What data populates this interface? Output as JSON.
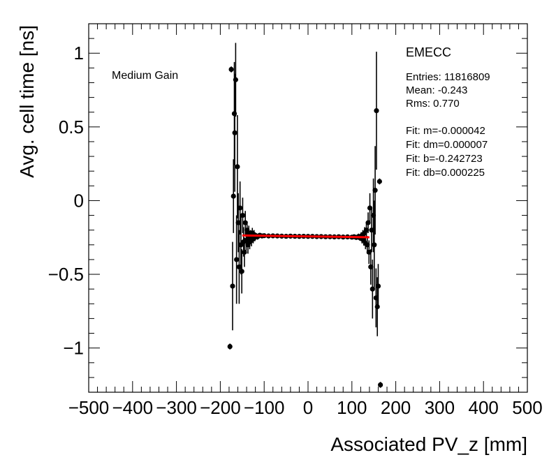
{
  "chart_data": {
    "type": "scatter",
    "title": "",
    "xlabel": "Associated PV_z [mm]",
    "ylabel": "Avg. cell time [ns]",
    "xlim": [
      -500,
      500
    ],
    "ylim": [
      -1.3,
      1.2
    ],
    "x_ticks": [
      -500,
      -400,
      -300,
      -200,
      -100,
      0,
      100,
      200,
      300,
      400,
      500
    ],
    "x_tick_labels": [
      "−500",
      "−400",
      "−300",
      "−200",
      "−100",
      "0",
      "100",
      "200",
      "300",
      "400",
      "500"
    ],
    "y_ticks": [
      -1,
      -0.5,
      0,
      0.5,
      1
    ],
    "y_tick_labels": [
      "−1",
      "−0.5",
      "0",
      "0.5",
      "1"
    ],
    "grid": false,
    "annotation": "Medium Gain",
    "stats": {
      "title": "EMECC",
      "entries": "Entries: 11816809",
      "mean": "Mean: -0.243",
      "rms": "Rms: 0.770",
      "fit_m": "Fit: m=-0.000042",
      "fit_dm": "Fit: dm=0.000007",
      "fit_b": "Fit: b=-0.242723",
      "fit_db": "Fit: db=0.000225"
    },
    "fit_line": {
      "x": [
        -150,
        140
      ],
      "y": [
        -0.2364,
        -0.2486
      ],
      "color": "#ff0000"
    },
    "marker_color": "#000000",
    "points": [
      {
        "x": -178,
        "y": -0.99,
        "e": 0.02
      },
      {
        "x": -175,
        "y": 0.89,
        "e": 0.02
      },
      {
        "x": -172,
        "y": -0.58,
        "e": 0.3
      },
      {
        "x": -170,
        "y": 0.03,
        "e": 0.25
      },
      {
        "x": -168,
        "y": 0.59,
        "e": 0.35
      },
      {
        "x": -167,
        "y": 0.46,
        "e": 0.4
      },
      {
        "x": -165,
        "y": 0.82,
        "e": 0.25
      },
      {
        "x": -163,
        "y": -0.4,
        "e": 0.3
      },
      {
        "x": -161,
        "y": 0.23,
        "e": 0.35
      },
      {
        "x": -159,
        "y": -0.15,
        "e": 0.2
      },
      {
        "x": -157,
        "y": -0.45,
        "e": 0.25
      },
      {
        "x": -155,
        "y": -0.05,
        "e": 0.18
      },
      {
        "x": -153,
        "y": -0.3,
        "e": 0.2
      },
      {
        "x": -151,
        "y": -0.48,
        "e": 0.15
      },
      {
        "x": -149,
        "y": -0.1,
        "e": 0.12
      },
      {
        "x": -147,
        "y": -0.28,
        "e": 0.1
      },
      {
        "x": -145,
        "y": -0.35,
        "e": 0.1
      },
      {
        "x": -143,
        "y": -0.15,
        "e": 0.08
      },
      {
        "x": -141,
        "y": -0.27,
        "e": 0.07
      },
      {
        "x": -139,
        "y": -0.2,
        "e": 0.06
      },
      {
        "x": -137,
        "y": -0.3,
        "e": 0.06
      },
      {
        "x": -135,
        "y": -0.22,
        "e": 0.05
      },
      {
        "x": -133,
        "y": -0.28,
        "e": 0.05
      },
      {
        "x": -131,
        "y": -0.24,
        "e": 0.04
      },
      {
        "x": -129,
        "y": -0.27,
        "e": 0.04
      },
      {
        "x": -127,
        "y": -0.22,
        "e": 0.035
      },
      {
        "x": -125,
        "y": -0.26,
        "e": 0.03
      },
      {
        "x": -123,
        "y": -0.23,
        "e": 0.03
      },
      {
        "x": -121,
        "y": -0.25,
        "e": 0.025
      },
      {
        "x": -118,
        "y": -0.24,
        "e": 0.02
      },
      {
        "x": -115,
        "y": -0.245,
        "e": 0.02
      },
      {
        "x": -110,
        "y": -0.235,
        "e": 0.015
      },
      {
        "x": -105,
        "y": -0.24,
        "e": 0.015
      },
      {
        "x": -100,
        "y": -0.238,
        "e": 0.012
      },
      {
        "x": -90,
        "y": -0.24,
        "e": 0.01
      },
      {
        "x": -80,
        "y": -0.239,
        "e": 0.008
      },
      {
        "x": -70,
        "y": -0.24,
        "e": 0.007
      },
      {
        "x": -60,
        "y": -0.241,
        "e": 0.006
      },
      {
        "x": -50,
        "y": -0.242,
        "e": 0.005
      },
      {
        "x": -40,
        "y": -0.241,
        "e": 0.005
      },
      {
        "x": -30,
        "y": -0.242,
        "e": 0.004
      },
      {
        "x": -20,
        "y": -0.243,
        "e": 0.004
      },
      {
        "x": -10,
        "y": -0.242,
        "e": 0.004
      },
      {
        "x": 0,
        "y": -0.243,
        "e": 0.004
      },
      {
        "x": 10,
        "y": -0.243,
        "e": 0.004
      },
      {
        "x": 20,
        "y": -0.244,
        "e": 0.004
      },
      {
        "x": 30,
        "y": -0.244,
        "e": 0.004
      },
      {
        "x": 40,
        "y": -0.245,
        "e": 0.005
      },
      {
        "x": 50,
        "y": -0.245,
        "e": 0.005
      },
      {
        "x": 60,
        "y": -0.246,
        "e": 0.006
      },
      {
        "x": 70,
        "y": -0.245,
        "e": 0.007
      },
      {
        "x": 80,
        "y": -0.247,
        "e": 0.008
      },
      {
        "x": 90,
        "y": -0.246,
        "e": 0.01
      },
      {
        "x": 100,
        "y": -0.248,
        "e": 0.012
      },
      {
        "x": 105,
        "y": -0.245,
        "e": 0.015
      },
      {
        "x": 110,
        "y": -0.25,
        "e": 0.015
      },
      {
        "x": 115,
        "y": -0.244,
        "e": 0.02
      },
      {
        "x": 118,
        "y": -0.252,
        "e": 0.02
      },
      {
        "x": 121,
        "y": -0.24,
        "e": 0.025
      },
      {
        "x": 123,
        "y": -0.26,
        "e": 0.03
      },
      {
        "x": 125,
        "y": -0.23,
        "e": 0.03
      },
      {
        "x": 127,
        "y": -0.27,
        "e": 0.035
      },
      {
        "x": 129,
        "y": -0.22,
        "e": 0.04
      },
      {
        "x": 131,
        "y": -0.29,
        "e": 0.04
      },
      {
        "x": 133,
        "y": -0.2,
        "e": 0.05
      },
      {
        "x": 135,
        "y": -0.3,
        "e": 0.06
      },
      {
        "x": 137,
        "y": -0.15,
        "e": 0.07
      },
      {
        "x": 139,
        "y": -0.35,
        "e": 0.08
      },
      {
        "x": 141,
        "y": -0.05,
        "e": 0.1
      },
      {
        "x": 143,
        "y": -0.45,
        "e": 0.12
      },
      {
        "x": 145,
        "y": -0.2,
        "e": 0.15
      },
      {
        "x": 147,
        "y": -0.6,
        "e": 0.2
      },
      {
        "x": 149,
        "y": -0.1,
        "e": 0.25
      },
      {
        "x": 151,
        "y": -0.3,
        "e": 0.3
      },
      {
        "x": 153,
        "y": 0.07,
        "e": 0.3
      },
      {
        "x": 155,
        "y": -0.66,
        "e": 0.2
      },
      {
        "x": 156,
        "y": 0.61,
        "e": 0.4
      },
      {
        "x": 158,
        "y": -0.72,
        "e": 0.2
      },
      {
        "x": 160,
        "y": -0.58,
        "e": 0.15
      },
      {
        "x": 163,
        "y": 0.13,
        "e": 0.02
      },
      {
        "x": 165,
        "y": -1.25,
        "e": 0.02
      }
    ]
  }
}
